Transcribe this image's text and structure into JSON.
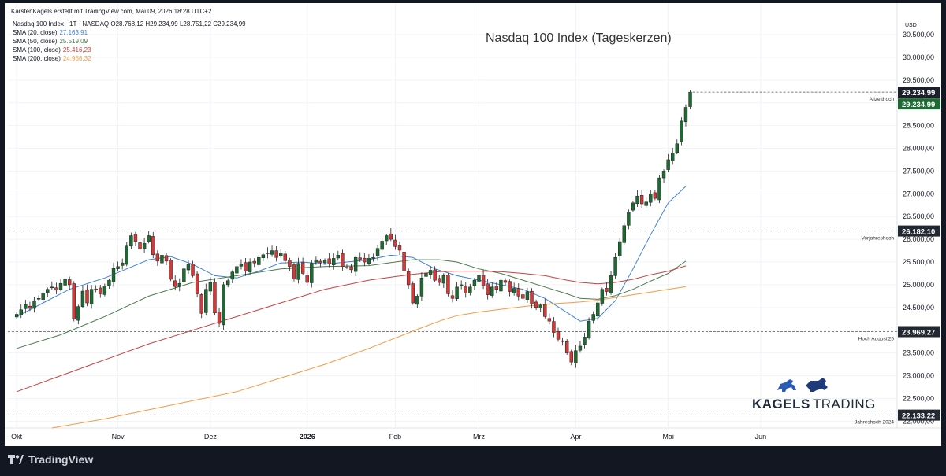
{
  "header": {
    "credit": "KarstenKagels erstellt mit TradingView.com, Mai 09, 2026 18:28 UTC+2",
    "ohlc": "Nasdaq 100 Index · 1T · NASDAQ  O28.768,12  H29.234,99  L28.751,22  C29.234,99",
    "currency": "USD"
  },
  "indicators": [
    {
      "label": "SMA (20, close)",
      "value": "27.163,91",
      "color": "#3d7fd9"
    },
    {
      "label": "SMA (50, close)",
      "value": "25.519,09",
      "color": "#4a7a4c"
    },
    {
      "label": "SMA (100, close)",
      "value": "25.416,23",
      "color": "#c94040"
    },
    {
      "label": "SMA (200, close)",
      "value": "24.956,32",
      "color": "#f59a42"
    }
  ],
  "footer": {
    "brand": "TradingView"
  },
  "logo": {
    "word1": "KAGELS",
    "word2": "TRADING"
  },
  "colors": {
    "up": "#1e6a33",
    "down": "#d23a3a",
    "axis_text": "#131722",
    "grid": "#f0f3fa"
  },
  "chart_data": {
    "type": "candlestick",
    "title": "Nasdaq 100 Index (Tageskerzen)",
    "xlabel": "",
    "ylabel": "",
    "ylim": [
      21850,
      30950
    ],
    "y_ticks": [
      "22.000,00",
      "22.500,00",
      "23.000,00",
      "23.500,00",
      "24.000,00",
      "24.500,00",
      "25.000,00",
      "25.500,00",
      "26.000,00",
      "26.500,00",
      "27.000,00",
      "27.500,00",
      "28.000,00",
      "28.500,00",
      "29.000,00",
      "29.500,00",
      "30.000,00",
      "30.500,00"
    ],
    "y_tick_values": [
      22000,
      22500,
      23000,
      23500,
      24000,
      24500,
      25000,
      25500,
      26000,
      26500,
      27000,
      27500,
      28000,
      28500,
      29000,
      29500,
      30000,
      30500
    ],
    "x_ticks": [
      {
        "label": "Okt",
        "day": 0,
        "bold": false
      },
      {
        "label": "Nov",
        "day": 23,
        "bold": false
      },
      {
        "label": "Dez",
        "day": 44,
        "bold": false
      },
      {
        "label": "2026",
        "day": 66,
        "bold": true
      },
      {
        "label": "Feb",
        "day": 86,
        "bold": false
      },
      {
        "label": "Mrz",
        "day": 105,
        "bold": false
      },
      {
        "label": "Apr",
        "day": 127,
        "bold": false
      },
      {
        "label": "Mai",
        "day": 148,
        "bold": false
      },
      {
        "label": "Jun",
        "day": 169,
        "bold": false
      }
    ],
    "x_range": [
      -2,
      200
    ],
    "closes": [
      24350,
      24450,
      24560,
      24480,
      24650,
      24700,
      24820,
      24900,
      24950,
      24880,
      25030,
      25120,
      25000,
      24250,
      24520,
      24860,
      24600,
      24900,
      24890,
      24800,
      24970,
      25100,
      25360,
      25400,
      25480,
      25850,
      26080,
      25950,
      25780,
      25910,
      26080,
      25660,
      25520,
      25650,
      25520,
      25120,
      24960,
      25030,
      25350,
      25450,
      25200,
      24800,
      24370,
      24900,
      25060,
      24380,
      24150,
      25000,
      25090,
      25280,
      25400,
      25450,
      25300,
      25500,
      25480,
      25600,
      25660,
      25700,
      25750,
      25600,
      25700,
      25530,
      25400,
      25130,
      25470,
      25250,
      25050,
      25470,
      25550,
      25480,
      25540,
      25460,
      25580,
      25650,
      25400,
      25380,
      25330,
      25600,
      25560,
      25500,
      25580,
      25600,
      25800,
      25960,
      26080,
      26000,
      25840,
      25760,
      25300,
      25000,
      24600,
      24750,
      25150,
      25250,
      25320,
      25100,
      25050,
      25200,
      24800,
      24700,
      24950,
      25000,
      24820,
      24950,
      25100,
      25200,
      24980,
      24780,
      24950,
      24900,
      25100,
      25050,
      24850,
      24920,
      24750,
      24700,
      24850,
      24580,
      24500,
      24550,
      24300,
      24200,
      23950,
      23800,
      23750,
      23500,
      23300,
      23550,
      23650,
      23850,
      24200,
      24350,
      24600,
      24900,
      24850,
      25200,
      25600,
      25950,
      26300,
      26600,
      26800,
      26950,
      26780,
      26820,
      27000,
      26900,
      27350,
      27500,
      27750,
      27900,
      28100,
      28600,
      28900,
      29234.99
    ],
    "series": [
      {
        "name": "SMA (20, close)",
        "color": "#3d7fd9",
        "x": [
          0,
          6,
          12,
          20,
          25,
          30,
          35,
          40,
          45,
          50,
          55,
          60,
          65,
          70,
          75,
          80,
          85,
          90,
          95,
          100,
          105,
          110,
          115,
          120,
          124,
          128,
          132,
          136,
          140,
          144,
          148,
          152
        ],
        "y": [
          24300,
          24600,
          24900,
          25150,
          25350,
          25550,
          25620,
          25450,
          25200,
          25150,
          25300,
          25480,
          25500,
          25450,
          25500,
          25550,
          25650,
          25600,
          25350,
          25200,
          25100,
          25000,
          24900,
          24700,
          24450,
          24200,
          24260,
          24650,
          25350,
          26100,
          26800,
          27163.91
        ]
      },
      {
        "name": "SMA (50, close)",
        "color": "#4a7a4c",
        "x": [
          0,
          10,
          20,
          30,
          40,
          50,
          60,
          70,
          80,
          86,
          90,
          96,
          100,
          105,
          110,
          115,
          120,
          125,
          128,
          132,
          136,
          140,
          144,
          148,
          152
        ],
        "y": [
          23600,
          23900,
          24300,
          24750,
          25050,
          25200,
          25350,
          25400,
          25420,
          25500,
          25550,
          25550,
          25500,
          25350,
          25250,
          25100,
          24950,
          24800,
          24700,
          24680,
          24760,
          24900,
          25080,
          25250,
          25519.09
        ]
      },
      {
        "name": "SMA (100, close)",
        "color": "#c94040",
        "x": [
          0,
          10,
          20,
          30,
          40,
          50,
          60,
          70,
          80,
          86,
          90,
          96,
          100,
          105,
          110,
          115,
          120,
          125,
          128,
          132,
          136,
          140,
          144,
          148,
          152
        ],
        "y": [
          22650,
          23000,
          23350,
          23700,
          24000,
          24300,
          24600,
          24900,
          25100,
          25180,
          25230,
          25290,
          25300,
          25300,
          25290,
          25250,
          25200,
          25100,
          25050,
          25020,
          25050,
          25120,
          25220,
          25300,
          25416.23
        ]
      },
      {
        "name": "SMA (200, close)",
        "color": "#f59a42",
        "x": [
          8,
          20,
          30,
          40,
          50,
          60,
          70,
          80,
          90,
          96,
          100,
          105,
          110,
          115,
          120,
          125,
          128,
          132,
          136,
          140,
          144,
          148,
          152
        ],
        "y": [
          21850,
          22050,
          22250,
          22450,
          22650,
          22950,
          23250,
          23600,
          23980,
          24200,
          24320,
          24400,
          24460,
          24520,
          24570,
          24600,
          24620,
          24660,
          24720,
          24780,
          24840,
          24900,
          24956.32
        ]
      }
    ],
    "levels": [
      {
        "value": 29234.99,
        "label": "Allzeithoch",
        "price": "29.234,99"
      },
      {
        "value": 26182.1,
        "label": "Vorjahreshoch",
        "price": "26.182,10"
      },
      {
        "value": 23969.27,
        "label": "Hoch August'25",
        "price": "23.969,27"
      },
      {
        "value": 22133.22,
        "label": "Jahreshoch 2024",
        "price": "22.133,22"
      }
    ],
    "last_price_label": "29.234,99",
    "last_price_value": 29234.99
  }
}
